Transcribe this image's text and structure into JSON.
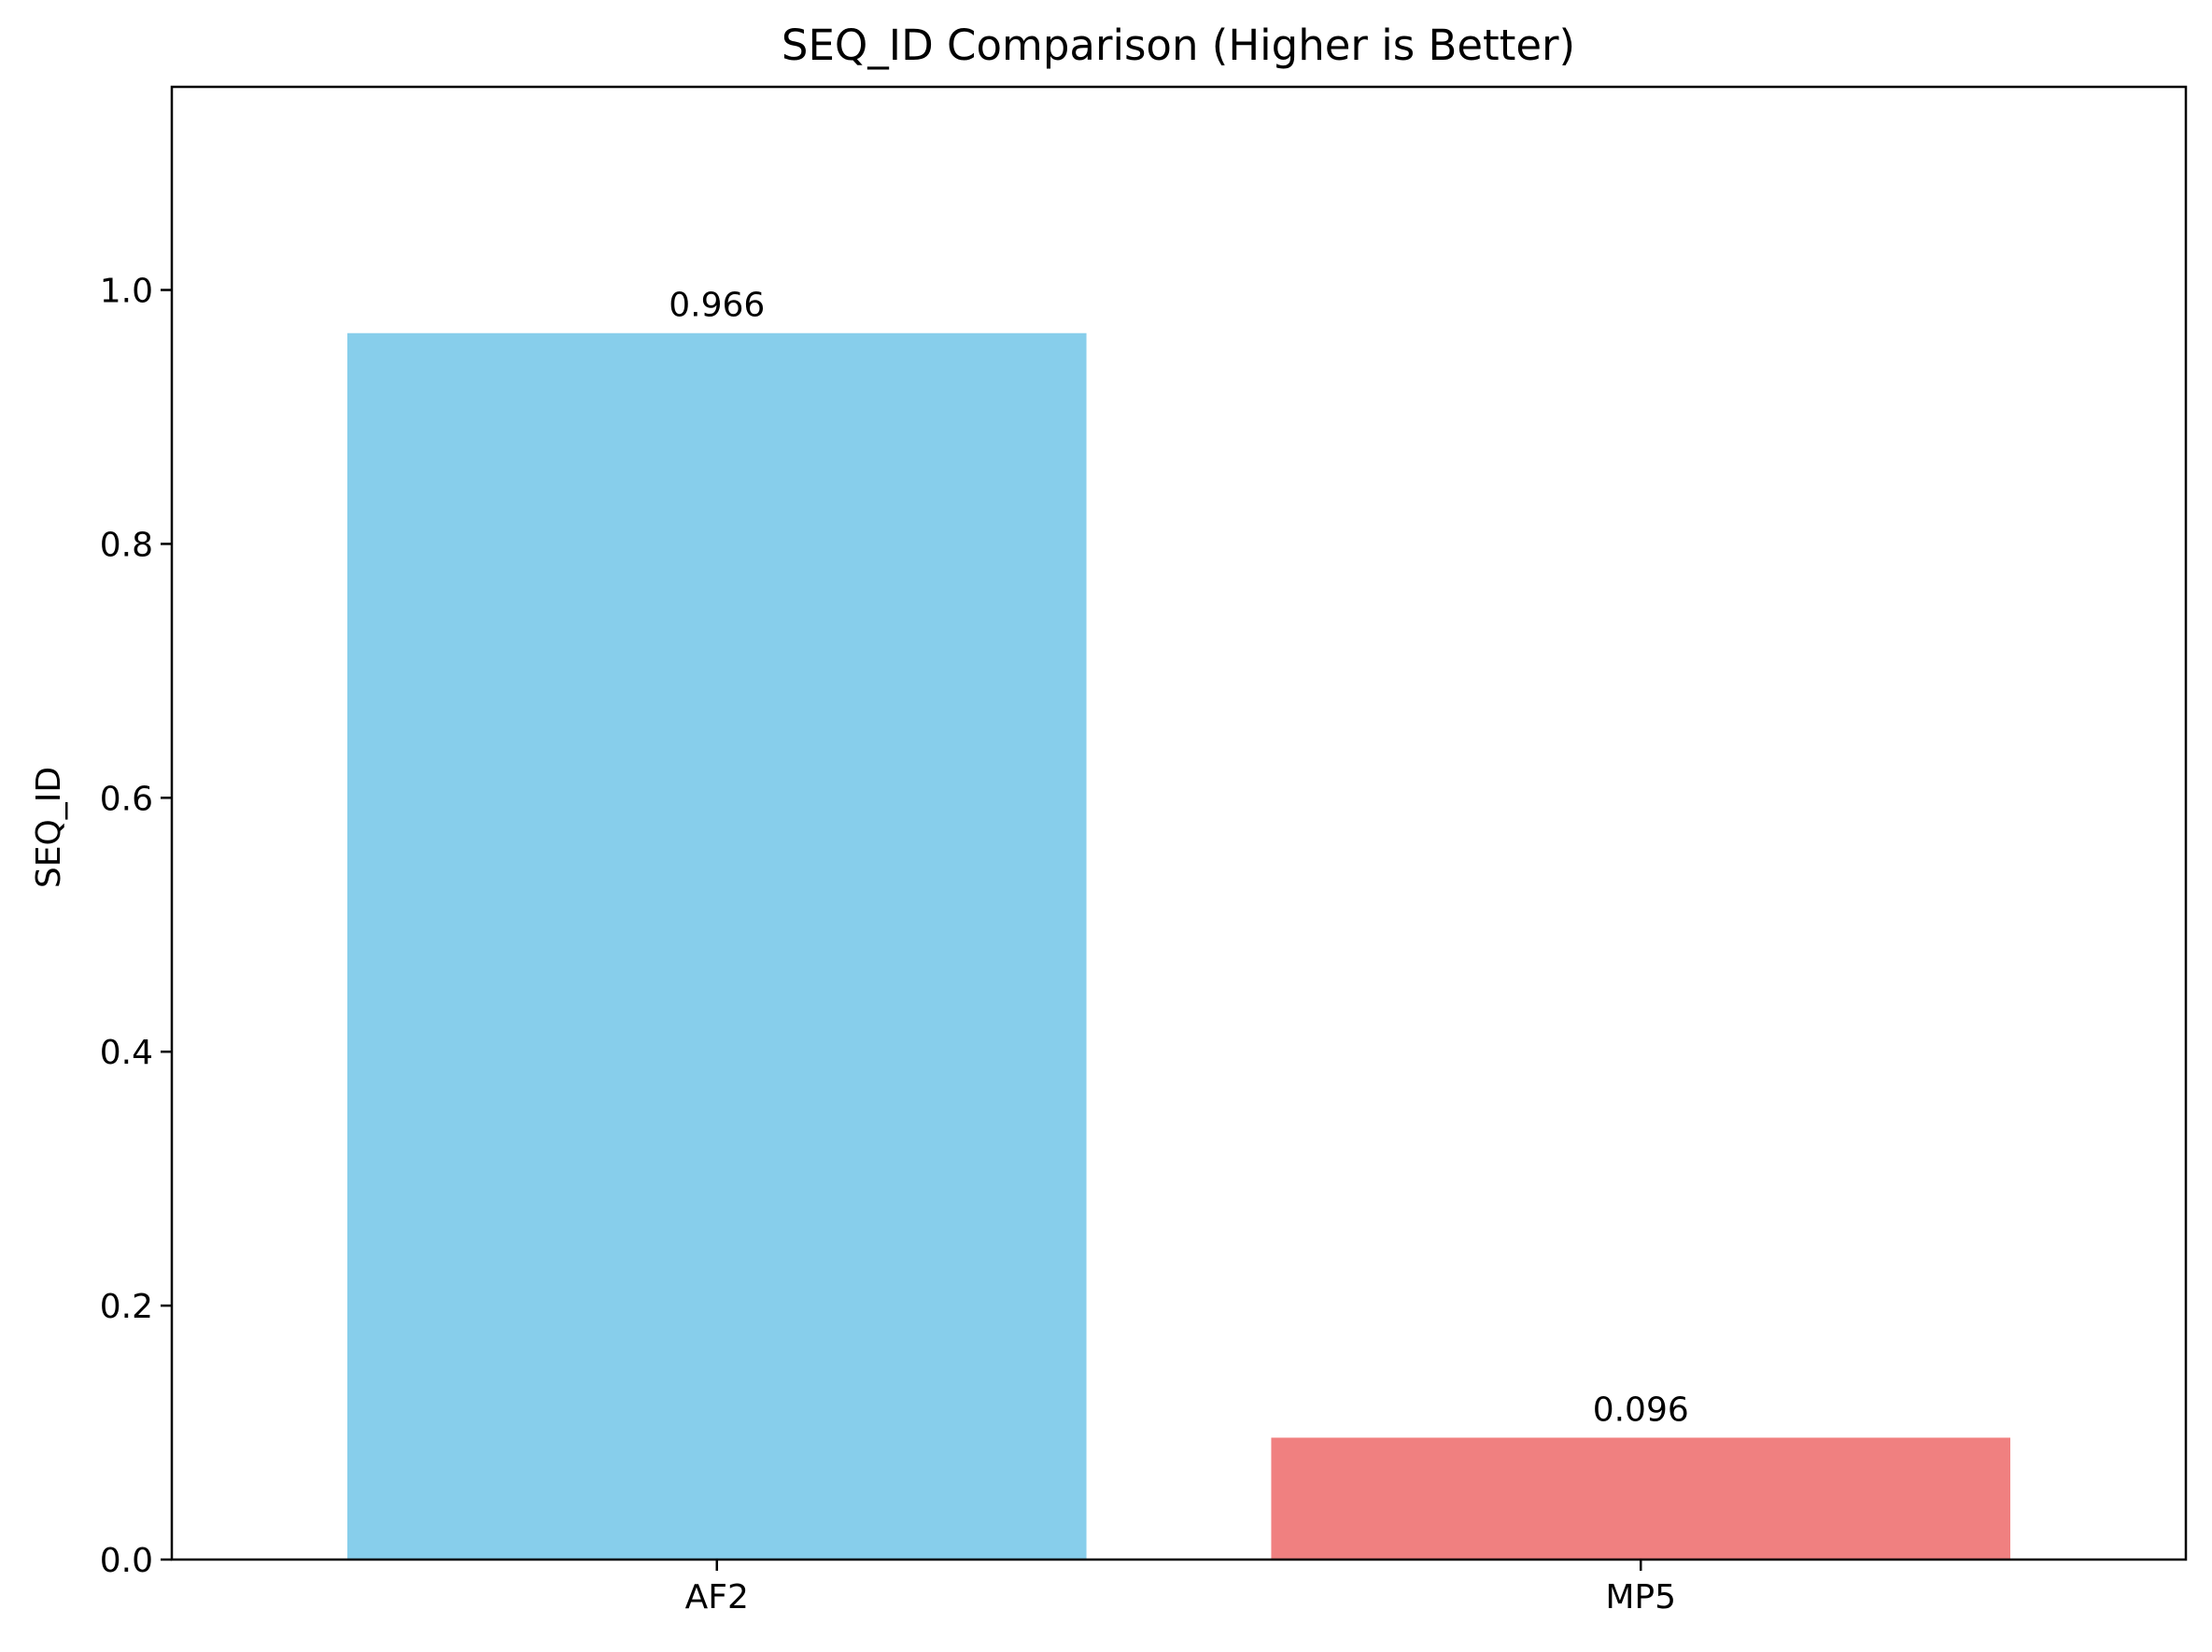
{
  "chart_data": {
    "type": "bar",
    "title": "SEQ_ID Comparison (Higher is Better)",
    "xlabel": "",
    "ylabel": "SEQ_ID",
    "categories": [
      "AF2",
      "MP5"
    ],
    "values": [
      0.966,
      0.096
    ],
    "value_labels": [
      "0.966",
      "0.096"
    ],
    "colors": [
      "#87CEEB",
      "#F08080"
    ],
    "ylim": [
      0,
      1.16
    ],
    "yticks": [
      0.0,
      0.2,
      0.4,
      0.6,
      0.8,
      1.0
    ],
    "ytick_labels": [
      "0.0",
      "0.2",
      "0.4",
      "0.6",
      "0.8",
      "1.0"
    ],
    "grid": false,
    "legend": "none"
  }
}
